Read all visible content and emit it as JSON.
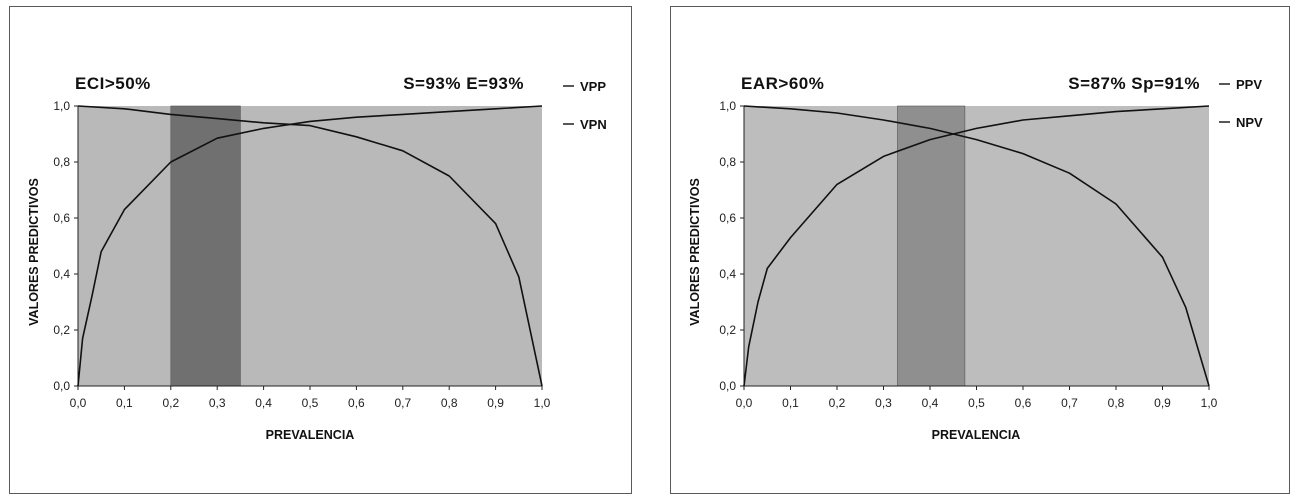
{
  "chart_data": [
    {
      "type": "line",
      "title": "ECI>50%",
      "stats": "S=93%  E=93%",
      "xlabel": "PREVALENCIA",
      "ylabel": "VALORES PREDICTIVOS",
      "xlim": [
        0,
        1
      ],
      "ylim": [
        0,
        1
      ],
      "x_ticks": [
        "0,0",
        "0,1",
        "0,2",
        "0,3",
        "0,4",
        "0,5",
        "0,6",
        "0,7",
        "0,8",
        "0,9",
        "1,0"
      ],
      "y_ticks": [
        "0,0",
        "0,2",
        "0,4",
        "0,6",
        "0,8",
        "1,0"
      ],
      "legend": "right",
      "background_color": "#b9b9b9",
      "band_color": "#707070",
      "band": [
        0.2,
        0.35
      ],
      "series": [
        {
          "name": "VPP",
          "x": [
            0.0,
            0.1,
            0.2,
            0.3,
            0.4,
            0.5,
            0.6,
            0.7,
            0.8,
            0.9,
            0.95,
            1.0
          ],
          "y": [
            1.0,
            0.99,
            0.97,
            0.955,
            0.94,
            0.93,
            0.89,
            0.84,
            0.75,
            0.58,
            0.39,
            0.0
          ]
        },
        {
          "name": "VPN",
          "x": [
            0.0,
            0.01,
            0.03,
            0.05,
            0.1,
            0.2,
            0.3,
            0.4,
            0.5,
            0.6,
            0.7,
            0.8,
            0.9,
            1.0
          ],
          "y": [
            0.0,
            0.17,
            0.32,
            0.48,
            0.63,
            0.8,
            0.885,
            0.92,
            0.945,
            0.96,
            0.97,
            0.98,
            0.99,
            1.0
          ]
        }
      ]
    },
    {
      "type": "line",
      "title": "EAR>60%",
      "stats": "S=87%  Sp=91%",
      "xlabel": "PREVALENCIA",
      "ylabel": "VALORES PREDICTIVOS",
      "xlim": [
        0,
        1
      ],
      "ylim": [
        0,
        1
      ],
      "x_ticks": [
        "0,0",
        "0,1",
        "0,2",
        "0,3",
        "0,4",
        "0,5",
        "0,6",
        "0,7",
        "0,8",
        "0,9",
        "1,0"
      ],
      "y_ticks": [
        "0,0",
        "0,2",
        "0,4",
        "0,6",
        "0,8",
        "1,0"
      ],
      "legend": "right",
      "background_color": "#bdbdbd",
      "band_color": "#8f8f8f",
      "band": [
        0.33,
        0.475
      ],
      "series": [
        {
          "name": "PPV",
          "x": [
            0.0,
            0.1,
            0.2,
            0.3,
            0.4,
            0.5,
            0.6,
            0.7,
            0.8,
            0.9,
            0.95,
            1.0
          ],
          "y": [
            1.0,
            0.99,
            0.975,
            0.95,
            0.92,
            0.88,
            0.83,
            0.76,
            0.65,
            0.46,
            0.28,
            0.0
          ]
        },
        {
          "name": "NPV",
          "x": [
            0.0,
            0.01,
            0.03,
            0.05,
            0.1,
            0.2,
            0.3,
            0.4,
            0.5,
            0.6,
            0.7,
            0.8,
            0.9,
            1.0
          ],
          "y": [
            0.0,
            0.14,
            0.3,
            0.42,
            0.53,
            0.72,
            0.82,
            0.88,
            0.92,
            0.95,
            0.965,
            0.98,
            0.99,
            1.0
          ]
        }
      ]
    }
  ]
}
